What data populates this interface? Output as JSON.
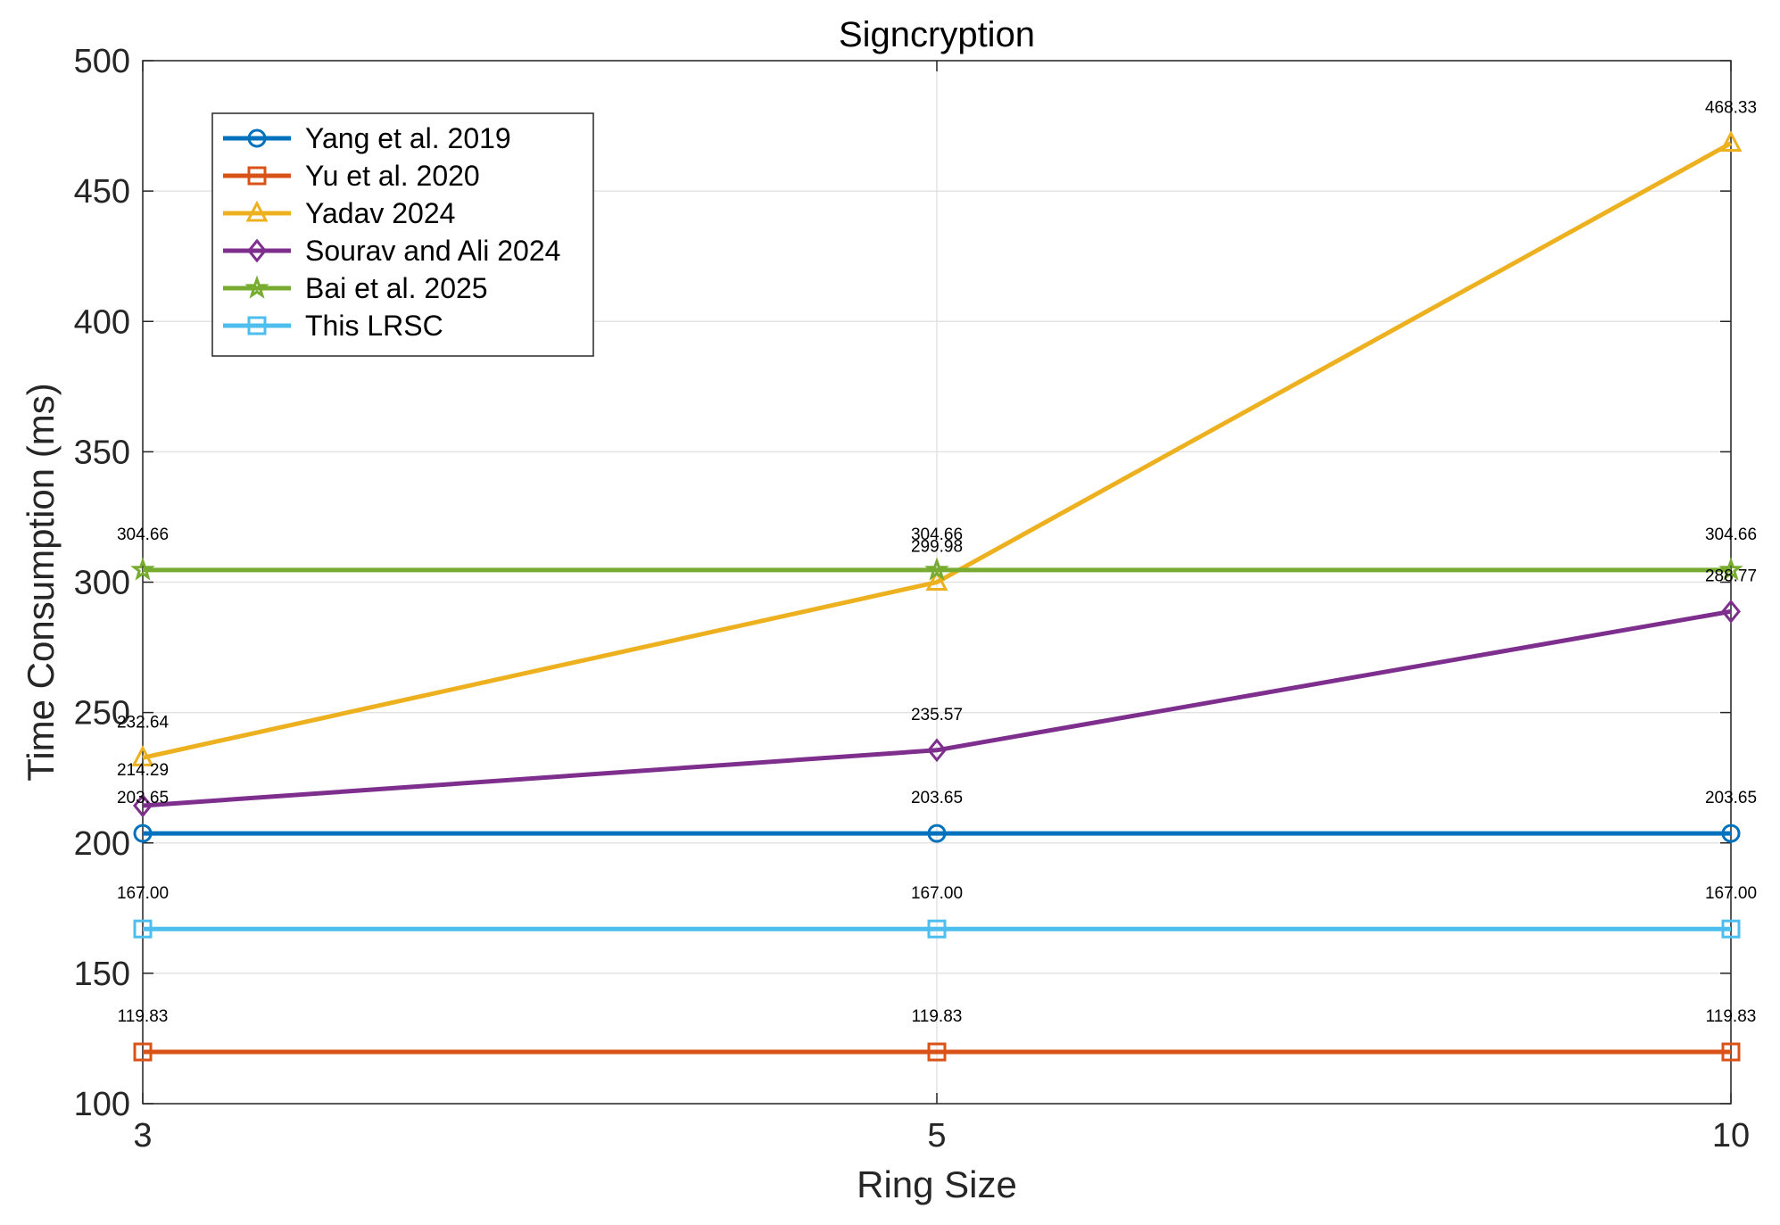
{
  "chart_data": {
    "type": "line",
    "title": "Signcryption",
    "xlabel": "Ring Size",
    "ylabel": "Time Consumption (ms)",
    "categories": [
      "3",
      "5",
      "10"
    ],
    "ylim": [
      100,
      500
    ],
    "yticks": [
      100,
      150,
      200,
      250,
      300,
      350,
      400,
      450,
      500
    ],
    "grid": true,
    "legend_position": "top-left",
    "series": [
      {
        "name": "Yang et al. 2019",
        "values": [
          203.65,
          203.65,
          203.65
        ],
        "labels": [
          "203.65",
          "203.65",
          "203.65"
        ],
        "color": "#0072BD",
        "marker": "circle"
      },
      {
        "name": "Yu et al. 2020",
        "values": [
          119.83,
          119.83,
          119.83
        ],
        "labels": [
          "119.83",
          "119.83",
          "119.83"
        ],
        "color": "#D95319",
        "marker": "square"
      },
      {
        "name": "Yadav 2024",
        "values": [
          232.64,
          299.98,
          468.33
        ],
        "labels": [
          "232.64",
          "299.98",
          "468.33"
        ],
        "color": "#EDB120",
        "marker": "triangle"
      },
      {
        "name": "Sourav and Ali 2024",
        "values": [
          214.29,
          235.57,
          288.77
        ],
        "labels": [
          "214.29",
          "235.57",
          "288.77"
        ],
        "color": "#7E2F8E",
        "marker": "diamond"
      },
      {
        "name": "Bai et al. 2025",
        "values": [
          304.66,
          304.66,
          304.66
        ],
        "labels": [
          "304.66",
          "304.66",
          "304.66"
        ],
        "color": "#77AC30",
        "marker": "star"
      },
      {
        "name": "This LRSC",
        "values": [
          167.0,
          167.0,
          167.0
        ],
        "labels": [
          "167.00",
          "167.00",
          "167.00"
        ],
        "color": "#4DBEEE",
        "marker": "square"
      }
    ]
  }
}
